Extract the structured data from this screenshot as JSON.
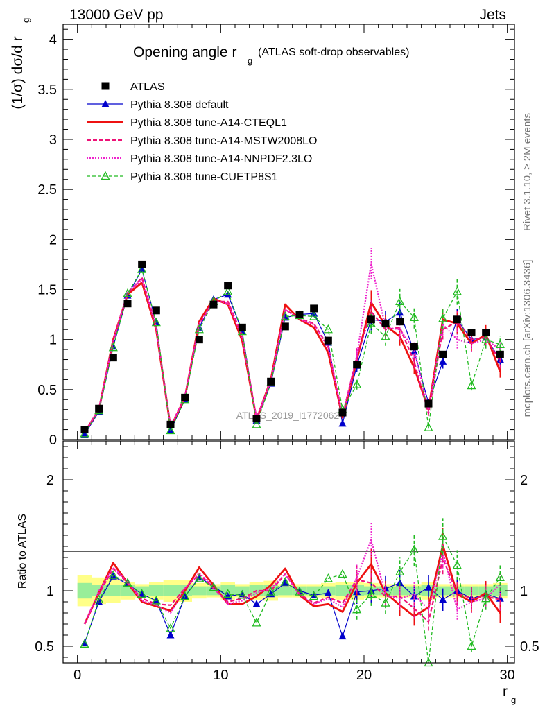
{
  "header": {
    "energy_label": "13000 GeV pp",
    "process_label": "Jets"
  },
  "side_labels": {
    "rivet": "Rivet 3.1.10, ≥ 2M events",
    "mcplots": "mcplots.cern.ch [arXiv:1306.3436]"
  },
  "watermark": "ATLAS_2019_I1772062",
  "chart_data": {
    "type": "line",
    "title": "Opening angle r",
    "title_sub": "g",
    "title_suffix": "(ATLAS soft-drop observables)",
    "xlabel": "r",
    "xlabel_sub": "g",
    "ylabel": "(1/σ) dσ/d r",
    "ylabel_sub": "g",
    "ratio_ylabel": "Ratio to ATLAS",
    "xlim": [
      -1,
      30.5
    ],
    "ylim": [
      0,
      4.15
    ],
    "ratio_ylim": [
      0.35,
      2.35
    ],
    "xticks": [
      0,
      10,
      20,
      30
    ],
    "yticks": [
      0,
      0.5,
      1,
      1.5,
      2,
      2.5,
      3,
      3.5,
      4
    ],
    "ytick_labels": [
      "0",
      "0.5",
      "1",
      "1.5",
      "2",
      "2.5",
      "3",
      "3.5",
      "4"
    ],
    "ratio_yticks": [
      0.5,
      1,
      2
    ],
    "ratio_ytick_labels": [
      "0.5",
      "1",
      "2"
    ],
    "legend_position": "top-left",
    "grid": false,
    "x": [
      0.5,
      1.5,
      2.5,
      3.5,
      4.5,
      5.5,
      6.5,
      7.5,
      8.5,
      9.5,
      10.5,
      11.5,
      12.5,
      13.5,
      14.5,
      15.5,
      16.5,
      17.5,
      18.5,
      19.5,
      20.5,
      21.5,
      22.5,
      23.5,
      24.5,
      25.5,
      26.5,
      27.5,
      28.5,
      29.5
    ],
    "band_inner": [
      0.07,
      0.05,
      0.05,
      0.05,
      0.04,
      0.05,
      0.05,
      0.05,
      0.04,
      0.04,
      0.05,
      0.04,
      0.05,
      0.05,
      0.04,
      0.04,
      0.04,
      0.04,
      0.05,
      0.05,
      0.04,
      0.04,
      0.04,
      0.04,
      0.05,
      0.04,
      0.04,
      0.04,
      0.04,
      0.05
    ],
    "band_outer": [
      0.14,
      0.12,
      0.11,
      0.08,
      0.06,
      0.08,
      0.1,
      0.1,
      0.07,
      0.06,
      0.08,
      0.06,
      0.08,
      0.09,
      0.06,
      0.06,
      0.06,
      0.07,
      0.08,
      0.08,
      0.07,
      0.06,
      0.06,
      0.06,
      0.08,
      0.06,
      0.06,
      0.06,
      0.06,
      0.07
    ],
    "series": [
      {
        "name": "ATLAS",
        "color": "#000000",
        "style": "marker-only",
        "marker": "square",
        "values": [
          0.1,
          0.31,
          0.82,
          1.36,
          1.75,
          1.29,
          0.15,
          0.42,
          1.0,
          1.35,
          1.54,
          1.12,
          0.21,
          0.58,
          1.13,
          1.25,
          1.31,
          0.99,
          0.27,
          0.75,
          1.2,
          1.16,
          1.18,
          0.93,
          0.36,
          0.85,
          1.2,
          1.07,
          1.07,
          0.85
        ],
        "ratio": [
          1,
          1,
          1,
          1,
          1,
          1,
          1,
          1,
          1,
          1,
          1,
          1,
          1,
          1,
          1,
          1,
          1,
          1,
          1,
          1,
          1,
          1,
          1,
          1,
          1,
          1,
          1,
          1,
          1,
          1
        ]
      },
      {
        "name": "Pythia 8.308 default",
        "color": "#0000cc",
        "style": "solid-thin",
        "marker": "triangle-filled",
        "values": [
          0.05,
          0.28,
          0.93,
          1.44,
          1.7,
          1.17,
          0.09,
          0.4,
          1.12,
          1.4,
          1.45,
          1.08,
          0.19,
          0.56,
          1.22,
          1.25,
          1.26,
          0.97,
          0.16,
          0.74,
          1.2,
          1.18,
          1.27,
          0.88,
          0.37,
          0.78,
          1.2,
          1.0,
          1.02,
          0.8
        ],
        "ratio": [
          0.53,
          0.9,
          1.13,
          1.06,
          0.97,
          0.91,
          0.6,
          0.95,
          1.12,
          1.04,
          0.95,
          0.97,
          0.88,
          0.97,
          1.07,
          1.0,
          0.96,
          0.98,
          0.59,
          0.99,
          1.0,
          1.02,
          1.07,
          0.95,
          1.03,
          0.92,
          1.0,
          0.93,
          0.97,
          0.93
        ]
      },
      {
        "name": "Pythia 8.308 tune-A14-CTEQL1",
        "color": "#ee1111",
        "style": "solid-thick",
        "marker": "none",
        "values": [
          0.07,
          0.3,
          1.0,
          1.45,
          1.57,
          1.1,
          0.12,
          0.42,
          1.18,
          1.41,
          1.35,
          0.99,
          0.2,
          0.6,
          1.35,
          1.2,
          1.12,
          0.87,
          0.22,
          0.8,
          1.37,
          1.14,
          1.03,
          0.72,
          0.3,
          1.2,
          1.16,
          0.96,
          1.05,
          0.68
        ],
        "ratio": [
          0.7,
          0.98,
          1.25,
          1.07,
          0.9,
          0.86,
          0.82,
          1.0,
          1.21,
          1.05,
          0.88,
          0.88,
          0.95,
          1.05,
          1.2,
          0.96,
          0.86,
          0.88,
          0.81,
          1.07,
          1.24,
          0.98,
          0.87,
          0.77,
          0.85,
          1.41,
          0.97,
          0.9,
          0.98,
          0.8
        ]
      },
      {
        "name": "Pythia 8.308 tune-A14-MSTW2008LO",
        "color": "#ee1177",
        "style": "dashed",
        "marker": "none",
        "values": [
          0.07,
          0.3,
          0.98,
          1.46,
          1.62,
          1.13,
          0.13,
          0.43,
          1.15,
          1.38,
          1.38,
          1.04,
          0.21,
          0.58,
          1.3,
          1.21,
          1.16,
          0.93,
          0.24,
          0.83,
          1.28,
          1.1,
          1.12,
          0.78,
          0.26,
          1.1,
          1.18,
          1.0,
          1.02,
          0.78
        ],
        "ratio": [
          0.7,
          0.97,
          1.2,
          1.07,
          0.93,
          0.88,
          0.87,
          1.02,
          1.15,
          1.02,
          0.9,
          0.93,
          1.0,
          1.0,
          1.15,
          0.97,
          0.89,
          0.94,
          0.89,
          1.1,
          1.07,
          0.95,
          0.95,
          0.84,
          0.72,
          1.29,
          0.98,
          0.93,
          0.95,
          0.92
        ]
      },
      {
        "name": "Pythia 8.308 tune-A14-NNPDF2.3LO",
        "color": "#ee22cc",
        "style": "dotted",
        "marker": "none",
        "values": [
          0.07,
          0.31,
          0.99,
          1.47,
          1.6,
          1.12,
          0.12,
          0.43,
          1.16,
          1.39,
          1.36,
          1.02,
          0.21,
          0.59,
          1.3,
          1.2,
          1.15,
          0.92,
          0.23,
          0.84,
          1.76,
          1.12,
          1.1,
          0.9,
          0.3,
          1.15,
          1.0,
          0.96,
          1.0,
          0.9
        ],
        "ratio": [
          0.7,
          1.0,
          1.21,
          1.08,
          0.91,
          0.87,
          0.8,
          1.02,
          1.16,
          1.03,
          0.88,
          0.91,
          0.98,
          1.02,
          1.15,
          0.96,
          0.88,
          0.93,
          0.85,
          1.12,
          1.46,
          0.96,
          0.93,
          0.97,
          0.83,
          1.35,
          0.83,
          0.9,
          0.93,
          1.06
        ]
      },
      {
        "name": "Pythia 8.308 tune-CUETP8S1",
        "color": "#22bb22",
        "style": "dashed",
        "marker": "triangle-open",
        "values": [
          0.06,
          0.29,
          0.92,
          1.46,
          1.7,
          1.17,
          0.09,
          0.4,
          1.1,
          1.38,
          1.48,
          1.08,
          0.15,
          0.57,
          1.23,
          1.24,
          1.23,
          1.1,
          0.3,
          0.55,
          1.16,
          1.03,
          1.38,
          1.22,
          0.12,
          1.21,
          1.48,
          0.54,
          1.0,
          0.95
        ],
        "ratio": [
          0.52,
          0.92,
          1.14,
          1.07,
          0.97,
          0.91,
          0.66,
          0.95,
          1.11,
          1.03,
          0.97,
          0.96,
          0.71,
          0.99,
          1.08,
          0.99,
          0.95,
          1.11,
          1.15,
          0.83,
          0.97,
          0.89,
          1.17,
          1.37,
          0.27,
          1.49,
          1.23,
          0.5,
          0.93,
          1.12
        ]
      }
    ]
  }
}
